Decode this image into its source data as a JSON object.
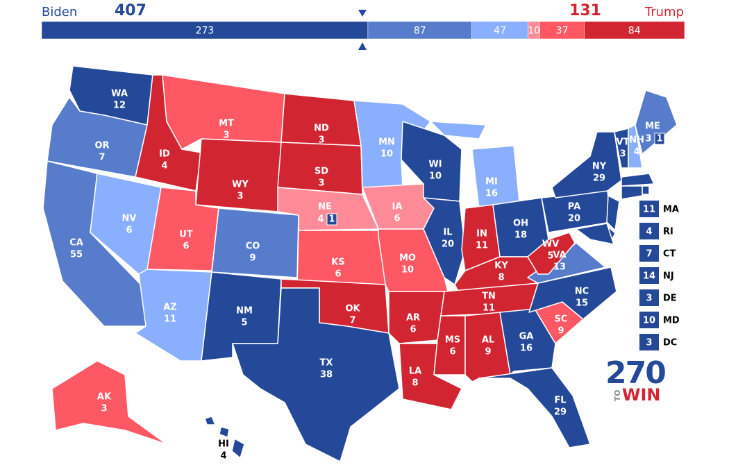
{
  "header": {
    "left_name": "Biden",
    "left_total": 407,
    "right_total": 131,
    "right_name": "Trump"
  },
  "ratings": {
    "safe_d": "#244999",
    "likely_d": "#577ccc",
    "lean_d": "#8aafff",
    "tilt_r": "#ff8b98",
    "lean_r": "#ff5865",
    "safe_r": "#d22532"
  },
  "bar": {
    "segments": [
      {
        "value": 273,
        "rating": "safe_d"
      },
      {
        "value": 87,
        "rating": "likely_d"
      },
      {
        "value": 47,
        "rating": "lean_d"
      },
      {
        "value": 10,
        "rating": "tilt_r"
      },
      {
        "value": 37,
        "rating": "lean_r"
      },
      {
        "value": 84,
        "rating": "safe_r"
      }
    ]
  },
  "states": [
    {
      "abbr": "WA",
      "ev": 12,
      "rating": "safe_d"
    },
    {
      "abbr": "OR",
      "ev": 7,
      "rating": "likely_d"
    },
    {
      "abbr": "CA",
      "ev": 55,
      "rating": "likely_d"
    },
    {
      "abbr": "NV",
      "ev": 6,
      "rating": "lean_d"
    },
    {
      "abbr": "ID",
      "ev": 4,
      "rating": "safe_r"
    },
    {
      "abbr": "MT",
      "ev": 3,
      "rating": "lean_r"
    },
    {
      "abbr": "WY",
      "ev": 3,
      "rating": "safe_r"
    },
    {
      "abbr": "UT",
      "ev": 6,
      "rating": "lean_r"
    },
    {
      "abbr": "CO",
      "ev": 9,
      "rating": "likely_d"
    },
    {
      "abbr": "AZ",
      "ev": 11,
      "rating": "lean_d"
    },
    {
      "abbr": "NM",
      "ev": 5,
      "rating": "safe_d"
    },
    {
      "abbr": "ND",
      "ev": 3,
      "rating": "safe_r"
    },
    {
      "abbr": "SD",
      "ev": 3,
      "rating": "safe_r"
    },
    {
      "abbr": "NE",
      "ev": 4,
      "rating": "tilt_r",
      "district_ev": 1,
      "district_rating": "safe_d"
    },
    {
      "abbr": "KS",
      "ev": 6,
      "rating": "lean_r"
    },
    {
      "abbr": "OK",
      "ev": 7,
      "rating": "safe_r"
    },
    {
      "abbr": "TX",
      "ev": 38,
      "rating": "safe_d"
    },
    {
      "abbr": "MN",
      "ev": 10,
      "rating": "lean_d"
    },
    {
      "abbr": "IA",
      "ev": 6,
      "rating": "tilt_r"
    },
    {
      "abbr": "MO",
      "ev": 10,
      "rating": "lean_r"
    },
    {
      "abbr": "AR",
      "ev": 6,
      "rating": "safe_r"
    },
    {
      "abbr": "LA",
      "ev": 8,
      "rating": "safe_r"
    },
    {
      "abbr": "WI",
      "ev": 10,
      "rating": "safe_d"
    },
    {
      "abbr": "IL",
      "ev": 20,
      "rating": "safe_d"
    },
    {
      "abbr": "MI",
      "ev": 16,
      "rating": "lean_d"
    },
    {
      "abbr": "IN",
      "ev": 11,
      "rating": "safe_r"
    },
    {
      "abbr": "OH",
      "ev": 18,
      "rating": "safe_d"
    },
    {
      "abbr": "KY",
      "ev": 8,
      "rating": "safe_r"
    },
    {
      "abbr": "TN",
      "ev": 11,
      "rating": "safe_r"
    },
    {
      "abbr": "MS",
      "ev": 6,
      "rating": "safe_r"
    },
    {
      "abbr": "AL",
      "ev": 9,
      "rating": "safe_r"
    },
    {
      "abbr": "GA",
      "ev": 16,
      "rating": "safe_d"
    },
    {
      "abbr": "FL",
      "ev": 29,
      "rating": "safe_d"
    },
    {
      "abbr": "SC",
      "ev": 9,
      "rating": "lean_r"
    },
    {
      "abbr": "NC",
      "ev": 15,
      "rating": "safe_d"
    },
    {
      "abbr": "VA",
      "ev": 13,
      "rating": "likely_d"
    },
    {
      "abbr": "WV",
      "ev": 5,
      "rating": "safe_r"
    },
    {
      "abbr": "PA",
      "ev": 20,
      "rating": "safe_d"
    },
    {
      "abbr": "NY",
      "ev": 29,
      "rating": "safe_d"
    },
    {
      "abbr": "VT",
      "ev": 3,
      "rating": "safe_d"
    },
    {
      "abbr": "NH",
      "ev": 4,
      "rating": "lean_d"
    },
    {
      "abbr": "ME",
      "ev": 3,
      "rating": "likely_d",
      "district_ev": 1,
      "district_rating": "safe_d"
    },
    {
      "abbr": "AK",
      "ev": 3,
      "rating": "lean_r"
    },
    {
      "abbr": "HI",
      "ev": 4,
      "rating": "safe_d"
    }
  ],
  "small_states": [
    {
      "abbr": "MA",
      "ev": 11,
      "rating": "safe_d"
    },
    {
      "abbr": "RI",
      "ev": 4,
      "rating": "safe_d"
    },
    {
      "abbr": "CT",
      "ev": 7,
      "rating": "safe_d"
    },
    {
      "abbr": "NJ",
      "ev": 14,
      "rating": "safe_d"
    },
    {
      "abbr": "DE",
      "ev": 3,
      "rating": "safe_d"
    },
    {
      "abbr": "MD",
      "ev": 10,
      "rating": "safe_d"
    },
    {
      "abbr": "DC",
      "ev": 3,
      "rating": "safe_d"
    }
  ],
  "logo": {
    "number": "270",
    "small": "TO",
    "word": "WIN"
  }
}
